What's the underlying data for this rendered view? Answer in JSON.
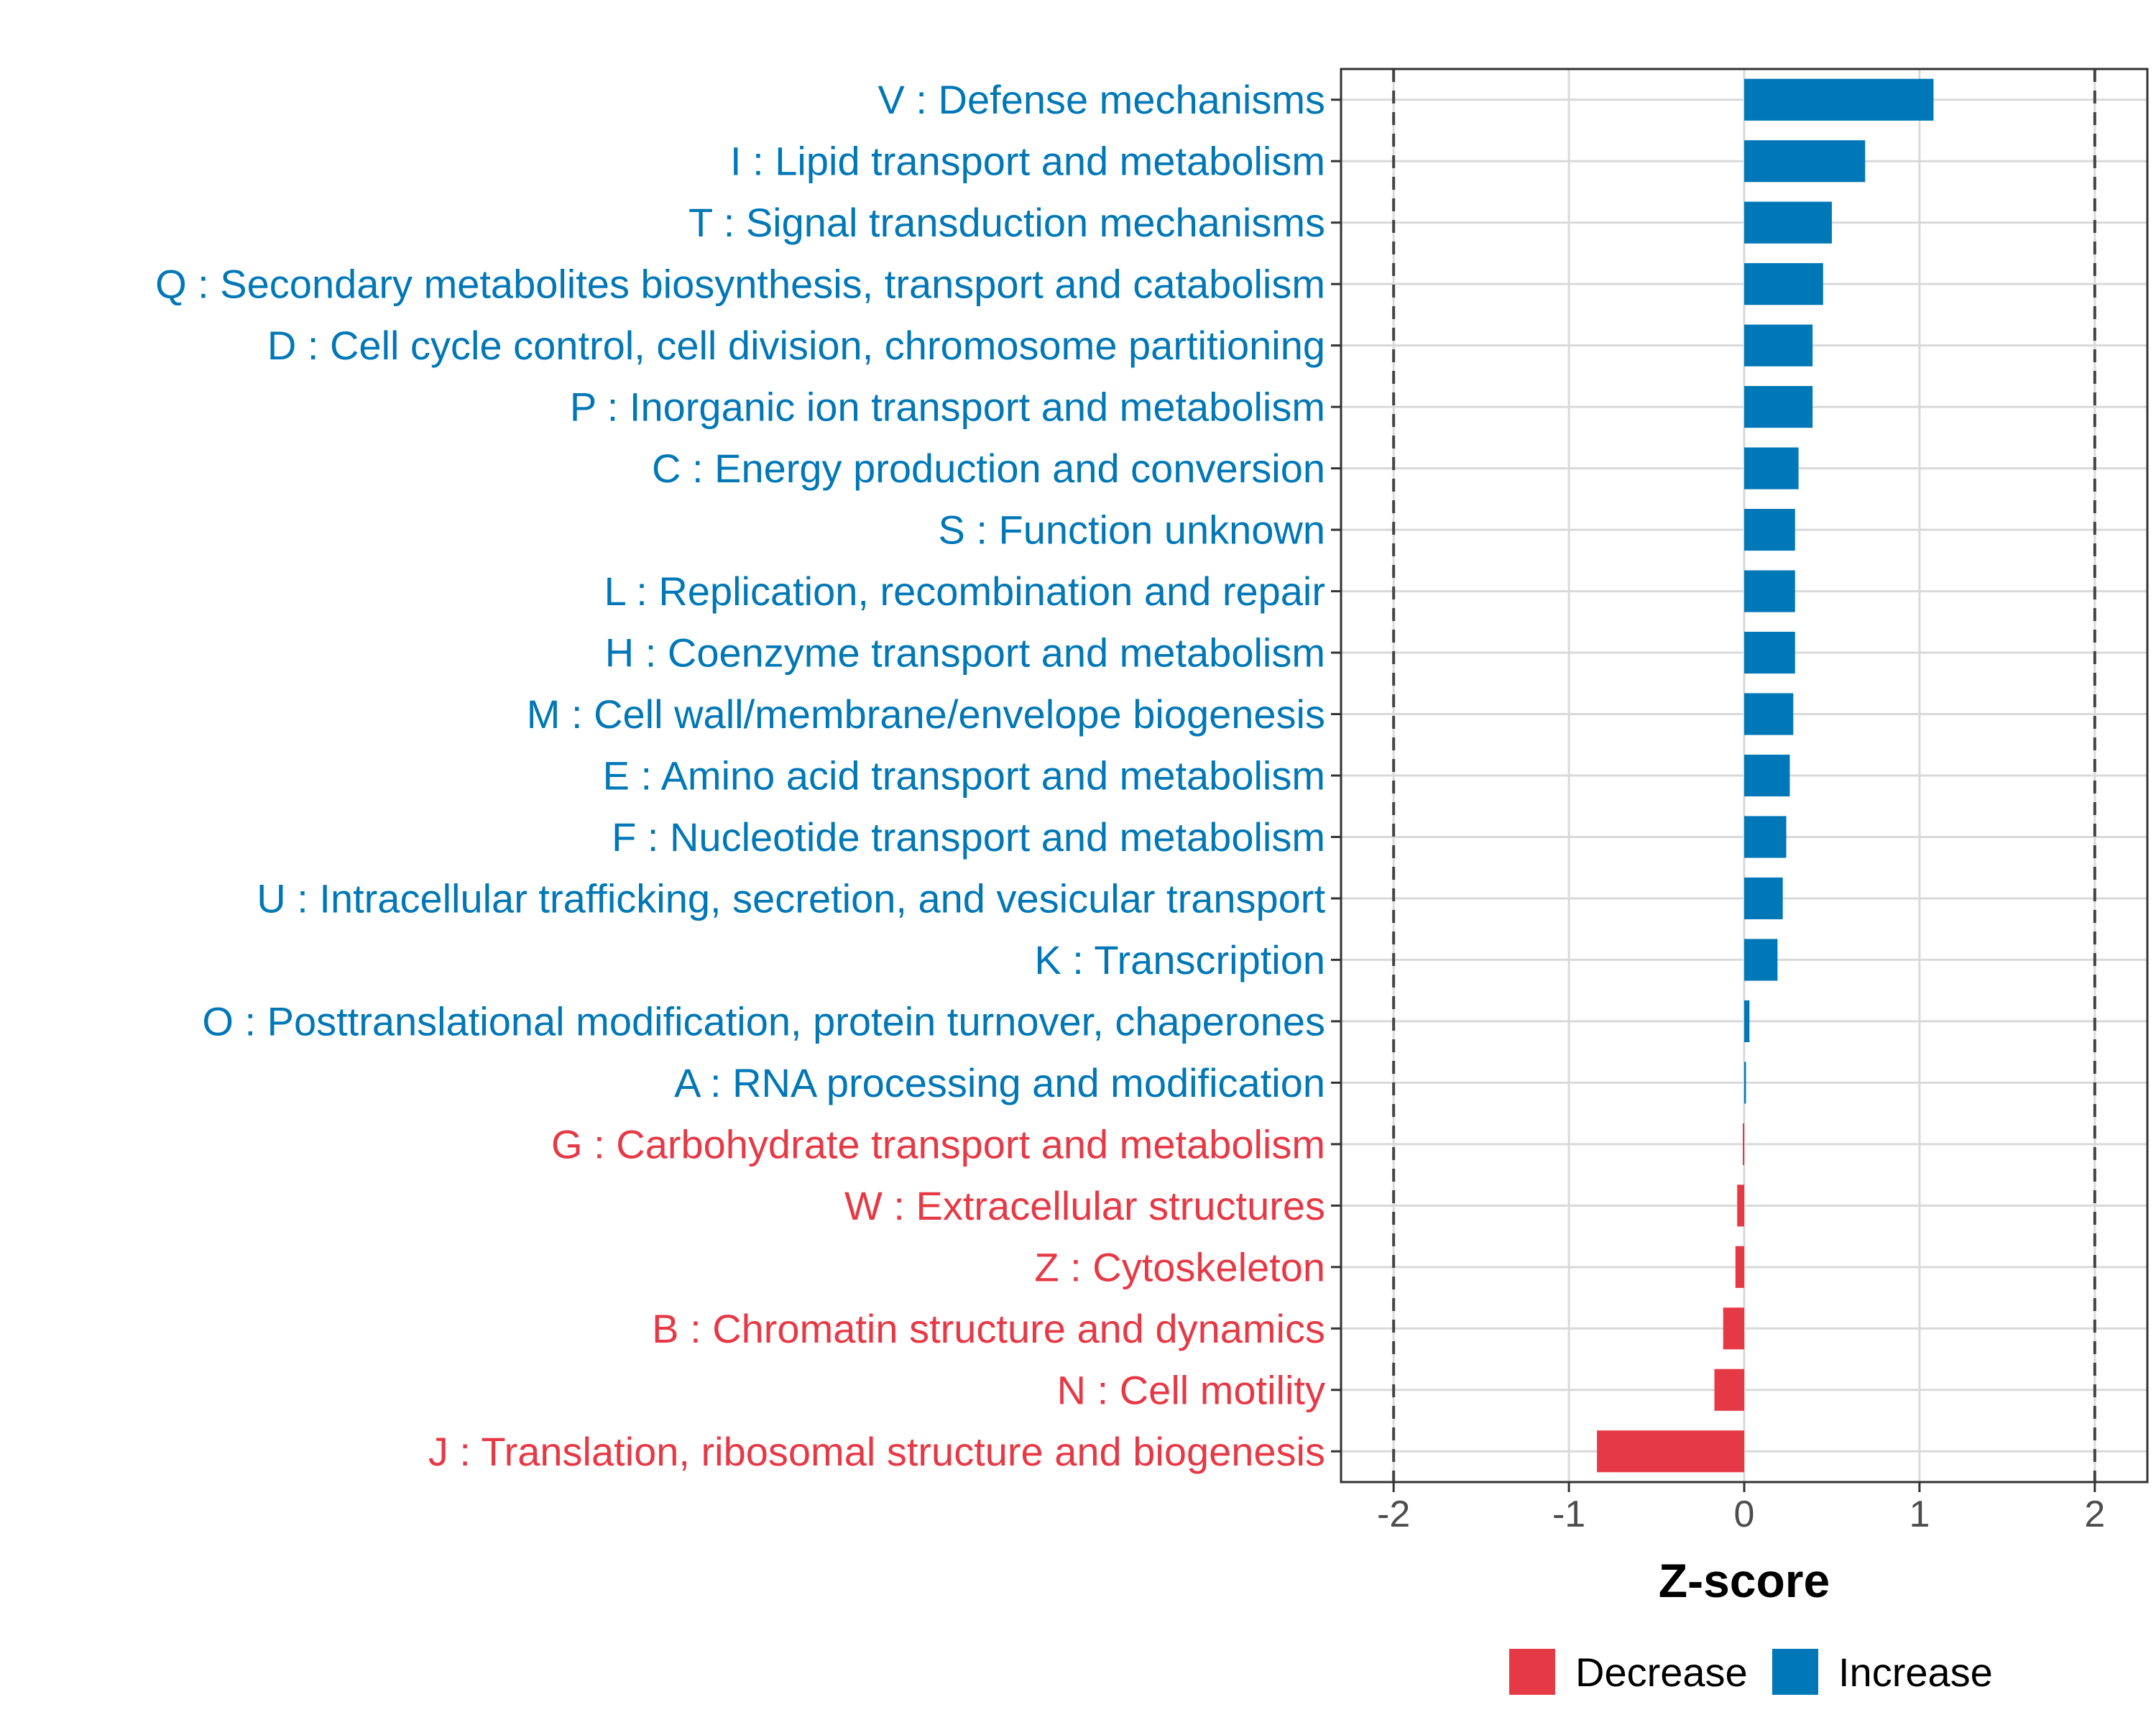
{
  "chart_data": {
    "type": "bar",
    "orientation": "horizontal",
    "xlabel": "Z-score",
    "ylabel": "",
    "xlim": [
      -2.3,
      2.3
    ],
    "xticks": [
      -2,
      -1,
      0,
      1,
      2
    ],
    "tick_labels": [
      "-2",
      "-1",
      "0",
      "1",
      "2"
    ],
    "reference_lines": [
      -2,
      2
    ],
    "grid": true,
    "colors": {
      "Decrease": "#e63946",
      "Increase": "#0077b6"
    },
    "legend": {
      "placement": "bottom",
      "entries": [
        "Decrease",
        "Increase"
      ]
    },
    "categories": [
      "V : Defense mechanisms",
      "I : Lipid transport and metabolism",
      "T : Signal transduction mechanisms",
      "Q : Secondary metabolites biosynthesis, transport and catabolism",
      "D : Cell cycle control, cell division, chromosome partitioning",
      "P : Inorganic ion transport and metabolism",
      "C : Energy production and conversion",
      "S : Function unknown",
      "L : Replication, recombination and repair",
      "H : Coenzyme transport and metabolism",
      "M : Cell wall/membrane/envelope biogenesis",
      "E : Amino acid transport and metabolism",
      "F : Nucleotide transport and metabolism",
      "U : Intracellular trafficking, secretion, and vesicular transport",
      "K : Transcription",
      "O : Posttranslational modification, protein turnover, chaperones",
      "A : RNA processing and modification",
      "G : Carbohydrate transport and metabolism",
      "W : Extracellular structures",
      "Z : Cytoskeleton",
      "B : Chromatin structure and dynamics",
      "N : Cell motility",
      "J : Translation, ribosomal structure and biogenesis"
    ],
    "values": [
      1.08,
      0.69,
      0.5,
      0.45,
      0.39,
      0.39,
      0.31,
      0.29,
      0.29,
      0.29,
      0.28,
      0.26,
      0.24,
      0.22,
      0.19,
      0.03,
      0.01,
      -0.005,
      -0.04,
      -0.05,
      -0.12,
      -0.17,
      -0.84
    ],
    "groups": [
      "Increase",
      "Increase",
      "Increase",
      "Increase",
      "Increase",
      "Increase",
      "Increase",
      "Increase",
      "Increase",
      "Increase",
      "Increase",
      "Increase",
      "Increase",
      "Increase",
      "Increase",
      "Increase",
      "Increase",
      "Decrease",
      "Decrease",
      "Decrease",
      "Decrease",
      "Decrease",
      "Decrease"
    ]
  }
}
